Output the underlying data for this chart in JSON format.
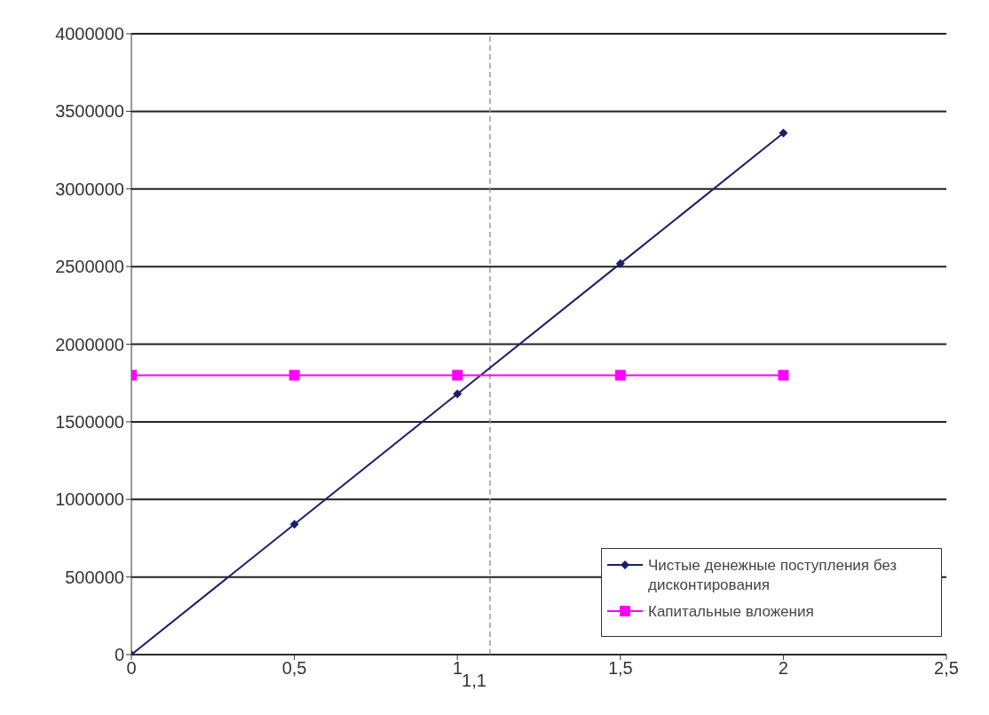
{
  "chart_data": {
    "type": "line",
    "x": [
      0,
      0.5,
      1,
      1.5,
      2
    ],
    "series": [
      {
        "name": "Чистые денежные поступления без дисконтирования",
        "color": "#1b1f6b",
        "values": [
          0,
          840000,
          1680000,
          2520000,
          3360000
        ],
        "marker": "diamond"
      },
      {
        "name": "Капитальные вложения",
        "color": "#ff00ff",
        "values": [
          1800000,
          1800000,
          1800000,
          1800000,
          1800000
        ],
        "marker": "square"
      }
    ],
    "xlim": [
      0,
      2.5
    ],
    "xticks": [
      0,
      {
        "value": 0.5,
        "label": "0,5"
      },
      1,
      {
        "value": 1.5,
        "label": "1,5"
      },
      2,
      {
        "value": 2.5,
        "label": "2,5"
      }
    ],
    "ylim": [
      0,
      4000000
    ],
    "yticks": [
      0,
      500000,
      1000000,
      1500000,
      2000000,
      2500000,
      3000000,
      3500000,
      4000000
    ],
    "grid": "y",
    "legend": "bottom right",
    "ref_lines": [
      {
        "axis": "x",
        "value": 1.1,
        "label": "1,1",
        "color": "#999999",
        "line_style": "dashed"
      }
    ]
  }
}
